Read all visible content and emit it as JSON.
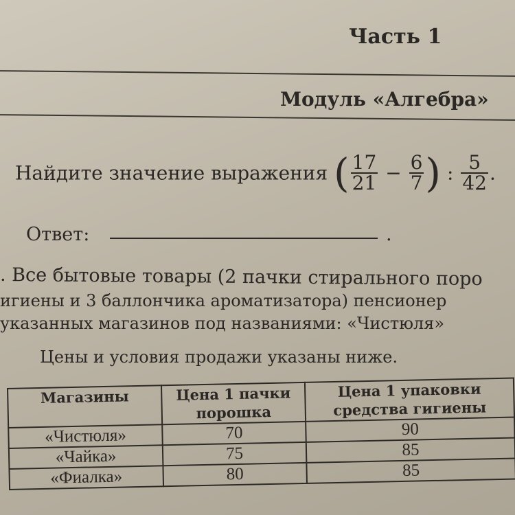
{
  "header": {
    "part": "Часть 1",
    "module": "Модуль «Алгебра»"
  },
  "task1": {
    "prompt": "Найдите значение выражения",
    "fractions": [
      {
        "num": "17",
        "den": "21"
      },
      {
        "num": "6",
        "den": "7"
      },
      {
        "num": "5",
        "den": "42"
      }
    ],
    "minus": "−",
    "divide": ":",
    "end": ".",
    "answer_label": "Ответ:",
    "answer_value": "",
    "answer_end": "."
  },
  "task2": {
    "lines": [
      ". Все бытовые товары (2 пачки стирального поро",
      "игиены и 3 баллончика ароматизатора) пенсионер",
      "указанных магазинов под названиями: «Чистюля»",
      "Цены и условия продажи указаны ниже."
    ],
    "table": {
      "headers": [
        "Магазины",
        "Цена 1 пачки порошка",
        "Цена 1 упаковки средства гигиены"
      ],
      "rows": [
        {
          "store": "«Чистюля»",
          "powder": "70",
          "hygiene": "90"
        },
        {
          "store": "«Чайка»",
          "powder": "75",
          "hygiene": "85"
        },
        {
          "store": "«Фиалка»",
          "powder": "80",
          "hygiene": "85"
        }
      ]
    }
  }
}
